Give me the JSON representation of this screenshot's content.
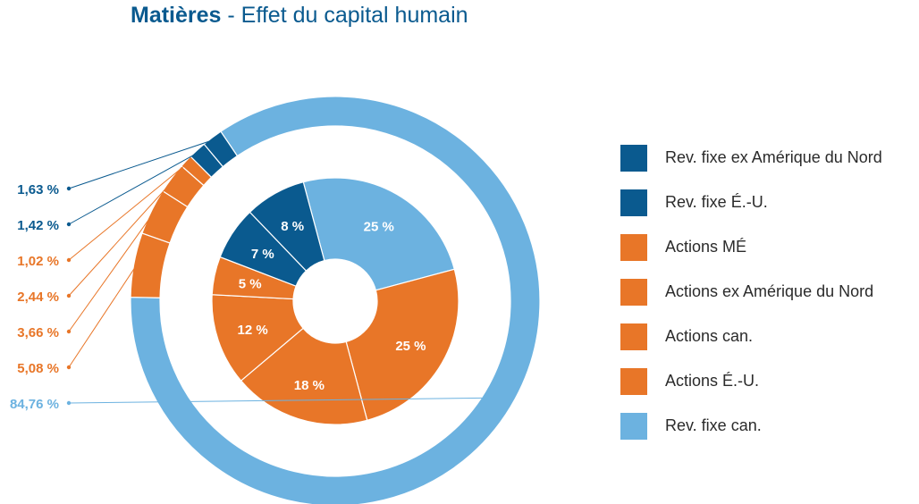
{
  "title": {
    "bold": "Matières",
    "rest": " - Effet du capital humain"
  },
  "chart_data": {
    "type": "pie",
    "title": "Matières - Effet du capital humain",
    "rings": [
      {
        "name": "inner",
        "slices": [
          {
            "label": "Rev. fixe can.",
            "value": 25,
            "text": "25 %",
            "color": "#6cb2e0",
            "label_color": "#ffffff"
          },
          {
            "label": "Actions É.-U.",
            "value": 25,
            "text": "25 %",
            "color": "#e87628",
            "label_color": "#ffffff"
          },
          {
            "label": "Actions can.",
            "value": 18,
            "text": "18 %",
            "color": "#e87628",
            "label_color": "#ffffff"
          },
          {
            "label": "Actions ex Amérique du Nord",
            "value": 12,
            "text": "12 %",
            "color": "#e87628",
            "label_color": "#ffffff"
          },
          {
            "label": "Actions MÉ",
            "value": 5,
            "text": "5 %",
            "color": "#e87628",
            "label_color": "#ffffff"
          },
          {
            "label": "Rev. fixe É.-U.",
            "value": 7,
            "text": "7 %",
            "color": "#0a5a8f",
            "label_color": "#ffffff"
          },
          {
            "label": "Rev. fixe ex Amérique du Nord",
            "value": 8,
            "text": "8 %",
            "color": "#0a5a8f",
            "label_color": "#ffffff"
          }
        ]
      },
      {
        "name": "outer",
        "slices": [
          {
            "label": "Rev. fixe can.",
            "value": 84.76,
            "text": "84,76 %",
            "color": "#6cb2e0",
            "label_color": "#6cb2e0"
          },
          {
            "label": "Actions É.-U.",
            "value": 5.08,
            "text": "5,08 %",
            "color": "#e87628",
            "label_color": "#e87628"
          },
          {
            "label": "Actions can.",
            "value": 3.66,
            "text": "3,66 %",
            "color": "#e87628",
            "label_color": "#e87628"
          },
          {
            "label": "Actions ex Amérique du Nord",
            "value": 2.44,
            "text": "2,44 %",
            "color": "#e87628",
            "label_color": "#e87628"
          },
          {
            "label": "Actions MÉ",
            "value": 1.02,
            "text": "1,02 %",
            "color": "#e87628",
            "label_color": "#e87628"
          },
          {
            "label": "Rev. fixe É.-U.",
            "value": 1.42,
            "text": "1,42 %",
            "color": "#0a5a8f",
            "label_color": "#0a5a8f"
          },
          {
            "label": "Rev. fixe ex Amérique du Nord",
            "value": 1.63,
            "text": "1,63 %",
            "color": "#0a5a8f",
            "label_color": "#0a5a8f"
          }
        ]
      }
    ],
    "legend": {
      "position": "right",
      "items": [
        {
          "label": "Rev. fixe ex Amérique du Nord",
          "color": "#0a5a8f"
        },
        {
          "label": "Rev. fixe É.-U.",
          "color": "#0a5a8f"
        },
        {
          "label": "Actions MÉ",
          "color": "#e87628"
        },
        {
          "label": "Actions ex Amérique du Nord",
          "color": "#e87628"
        },
        {
          "label": "Actions can.",
          "color": "#e87628"
        },
        {
          "label": "Actions É.-U.",
          "color": "#e87628"
        },
        {
          "label": "Rev. fixe can.",
          "color": "#6cb2e0"
        }
      ]
    }
  }
}
